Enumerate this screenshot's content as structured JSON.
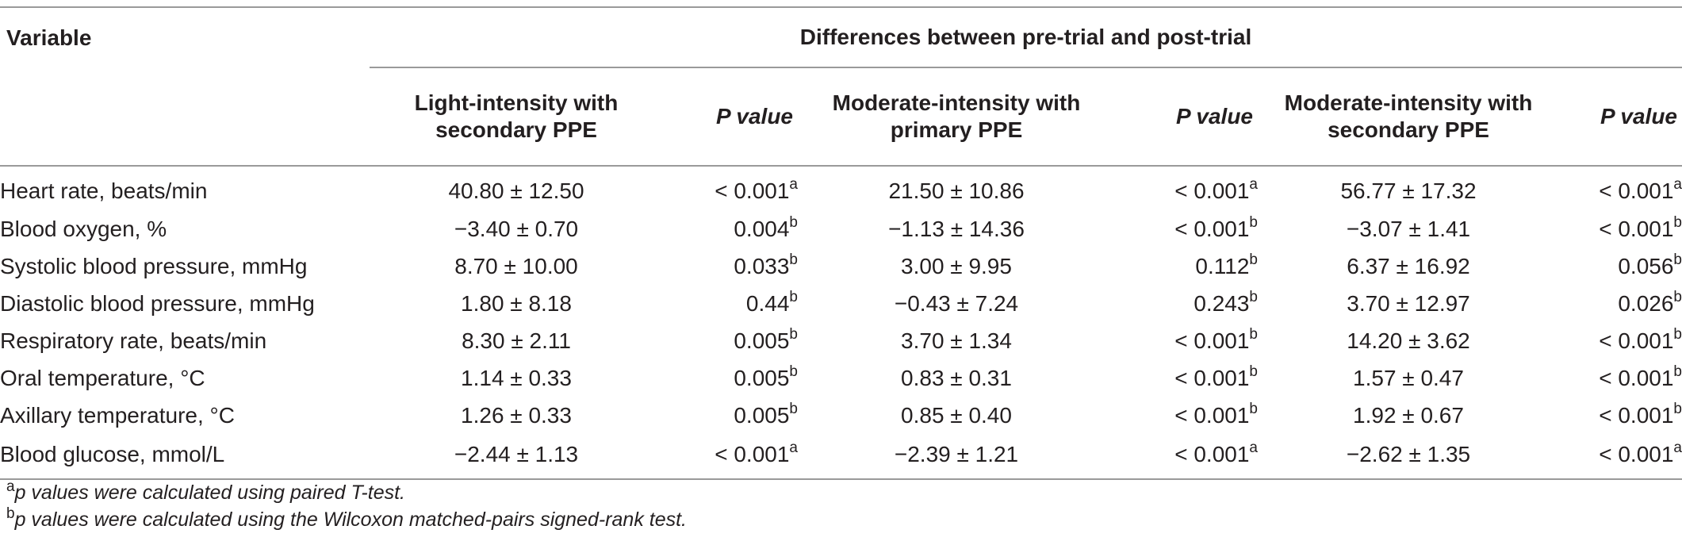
{
  "header": {
    "variable_label": "Variable",
    "span_label": "Differences between pre-trial and post-trial",
    "groups": [
      {
        "label_line1": "Light-intensity with",
        "label_line2": "secondary PPE",
        "pvalue_label": "P value"
      },
      {
        "label_line1": "Moderate-intensity with",
        "label_line2": "primary PPE",
        "pvalue_label": "P value"
      },
      {
        "label_line1": "Moderate-intensity with",
        "label_line2": "secondary PPE",
        "pvalue_label": "P value"
      }
    ]
  },
  "rows": [
    {
      "variable": "Heart rate, beats/min",
      "cells": [
        {
          "value": "40.80 ± 12.50",
          "p": "< 0.001",
          "sup": "a"
        },
        {
          "value": "21.50 ± 10.86",
          "p": "< 0.001",
          "sup": "a"
        },
        {
          "value": "56.77 ± 17.32",
          "p": "< 0.001",
          "sup": "a"
        }
      ]
    },
    {
      "variable": "Blood oxygen, %",
      "cells": [
        {
          "value": "−3.40 ± 0.70",
          "p": "0.004",
          "sup": "b"
        },
        {
          "value": "−1.13 ± 14.36",
          "p": "< 0.001",
          "sup": "b"
        },
        {
          "value": "−3.07 ± 1.41",
          "p": "< 0.001",
          "sup": "b"
        }
      ]
    },
    {
      "variable": "Systolic blood pressure, mmHg",
      "cells": [
        {
          "value": "8.70 ± 10.00",
          "p": "0.033",
          "sup": "b"
        },
        {
          "value": "3.00 ± 9.95",
          "p": "0.112",
          "sup": "b"
        },
        {
          "value": "6.37 ± 16.92",
          "p": "0.056",
          "sup": "b"
        }
      ]
    },
    {
      "variable": "Diastolic blood pressure, mmHg",
      "cells": [
        {
          "value": "1.80 ± 8.18",
          "p": "0.44",
          "sup": "b"
        },
        {
          "value": "−0.43 ± 7.24",
          "p": "0.243",
          "sup": "b"
        },
        {
          "value": "3.70 ± 12.97",
          "p": "0.026",
          "sup": "b"
        }
      ]
    },
    {
      "variable": "Respiratory rate, beats/min",
      "cells": [
        {
          "value": "8.30 ± 2.11",
          "p": "0.005",
          "sup": "b"
        },
        {
          "value": "3.70 ± 1.34",
          "p": "< 0.001",
          "sup": "b"
        },
        {
          "value": "14.20 ± 3.62",
          "p": "< 0.001",
          "sup": "b"
        }
      ]
    },
    {
      "variable": "Oral temperature, °C",
      "cells": [
        {
          "value": "1.14 ± 0.33",
          "p": "0.005",
          "sup": "b"
        },
        {
          "value": "0.83 ± 0.31",
          "p": "< 0.001",
          "sup": "b"
        },
        {
          "value": "1.57 ± 0.47",
          "p": "< 0.001",
          "sup": "b"
        }
      ]
    },
    {
      "variable": "Axillary temperature, °C",
      "cells": [
        {
          "value": "1.26 ± 0.33",
          "p": "0.005",
          "sup": "b"
        },
        {
          "value": "0.85 ± 0.40",
          "p": "< 0.001",
          "sup": "b"
        },
        {
          "value": "1.92 ± 0.67",
          "p": "< 0.001",
          "sup": "b"
        }
      ]
    },
    {
      "variable": "Blood glucose, mmol/L",
      "cells": [
        {
          "value": "−2.44 ± 1.13",
          "p": "< 0.001",
          "sup": "a"
        },
        {
          "value": "−2.39 ± 1.21",
          "p": "< 0.001",
          "sup": "a"
        },
        {
          "value": "−2.62 ± 1.35",
          "p": "< 0.001",
          "sup": "a"
        }
      ]
    }
  ],
  "footnotes": [
    {
      "mark": "a",
      "text": "p values were calculated using paired T-test."
    },
    {
      "mark": "b",
      "text": "p values were calculated using the Wilcoxon matched-pairs signed-rank test."
    }
  ]
}
